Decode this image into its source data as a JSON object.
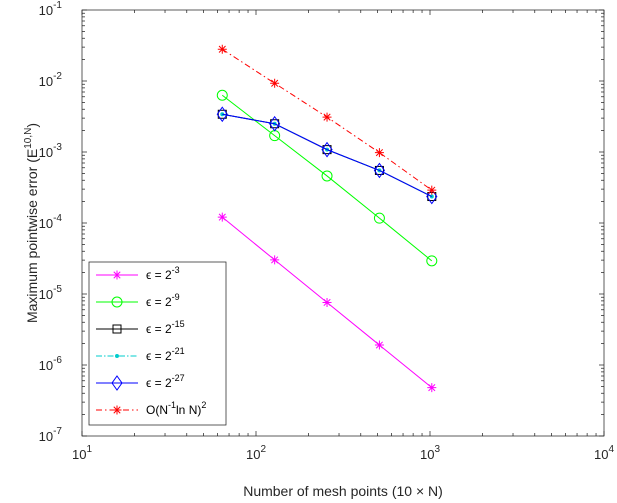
{
  "chart_data": {
    "type": "line",
    "title": "",
    "x_scale": "log",
    "y_scale": "log",
    "xlim": [
      10,
      10000
    ],
    "ylim": [
      1e-07,
      0.1
    ],
    "x_ticks": [
      {
        "value": 10,
        "base": "10",
        "exp": "1"
      },
      {
        "value": 100,
        "base": "10",
        "exp": "2"
      },
      {
        "value": 1000,
        "base": "10",
        "exp": "3"
      },
      {
        "value": 10000,
        "base": "10",
        "exp": "4"
      }
    ],
    "y_ticks": [
      {
        "value": 1e-07,
        "base": "10",
        "exp": "-7"
      },
      {
        "value": 1e-06,
        "base": "10",
        "exp": "-6"
      },
      {
        "value": 1e-05,
        "base": "10",
        "exp": "-5"
      },
      {
        "value": 0.0001,
        "base": "10",
        "exp": "-4"
      },
      {
        "value": 0.001,
        "base": "10",
        "exp": "-3"
      },
      {
        "value": 0.01,
        "base": "10",
        "exp": "-2"
      },
      {
        "value": 0.1,
        "base": "10",
        "exp": "-1"
      }
    ],
    "xlabel": {
      "text": "Number of mesh points (10  × N)"
    },
    "ylabel": {
      "text": "Maximum pointwise error (E",
      "sup": "10,N",
      "close": ")"
    },
    "grid": false,
    "legend_position": "bottom-left",
    "x": [
      64,
      128,
      256,
      512,
      1024
    ],
    "series": [
      {
        "name": "ϵ = 2",
        "sup": "-3",
        "color": "#ff00ff",
        "dash": "",
        "marker": "star",
        "values": [
          0.000121,
          3.02e-05,
          7.6e-06,
          1.91e-06,
          4.8e-07
        ]
      },
      {
        "name": "ϵ = 2",
        "sup": "-9",
        "color": "#00ff00",
        "dash": "",
        "marker": "circle",
        "values": [
          0.0063,
          0.0017,
          0.00046,
          0.000117,
          2.93e-05
        ]
      },
      {
        "name": "ϵ = 2",
        "sup": "-15",
        "color": "#000000",
        "dash": "",
        "marker": "square",
        "values": [
          0.0034,
          0.0025,
          0.00108,
          0.00055,
          0.000236
        ]
      },
      {
        "name": "ϵ = 2",
        "sup": "-21",
        "color": "#00cccc",
        "dash": "6,2,1.5,2",
        "marker": "point",
        "values": [
          0.0034,
          0.0025,
          0.00108,
          0.00055,
          0.000236
        ]
      },
      {
        "name": "ϵ = 2",
        "sup": "-27",
        "color": "#0000ff",
        "dash": "",
        "marker": "diamond",
        "values": [
          0.0034,
          0.0025,
          0.00108,
          0.00055,
          0.000236
        ]
      },
      {
        "name": "O(N",
        "sup": "-1",
        "suffix": "ln N)",
        "sup2": "2",
        "color": "#ff0000",
        "dash": "6,3,1.5,3",
        "marker": "star",
        "values": [
          0.028,
          0.0093,
          0.0031,
          0.00098,
          0.00029
        ]
      }
    ]
  }
}
